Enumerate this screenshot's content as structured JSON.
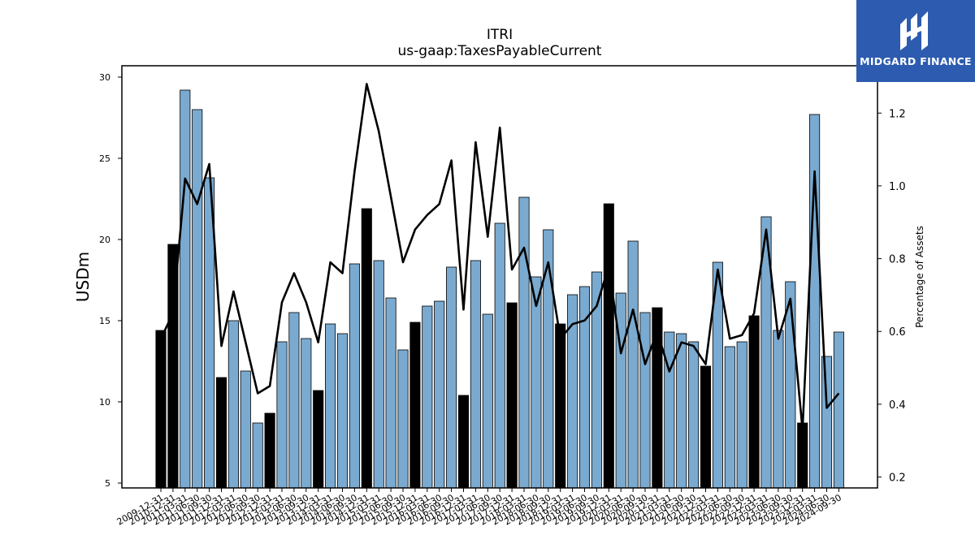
{
  "chart_data": {
    "type": "bar",
    "title": "ITRI",
    "subtitle": "us-gaap:TaxesPayableCurrent",
    "ylabel": "USDm",
    "y2label": "Percentage of Assets",
    "ylim": [
      4.7,
      30.7
    ],
    "y2lim": [
      0.17,
      1.33
    ],
    "yticks": [
      5,
      10,
      15,
      20,
      25,
      30
    ],
    "y2ticks": [
      0.2,
      0.4,
      0.6,
      0.8,
      1.0,
      1.2
    ],
    "y2tick_labels": [
      "0.2",
      "0.4",
      "0.6",
      "0.8",
      "1.0",
      "1.2"
    ],
    "categories": [
      "2009-12-31",
      "2010-12-31",
      "2011-03-31",
      "2011-06-30",
      "2011-09-30",
      "2011-12-31",
      "2012-03-31",
      "2012-06-30",
      "2012-09-30",
      "2012-12-31",
      "2013-03-31",
      "2013-06-30",
      "2013-09-30",
      "2013-12-31",
      "2014-03-31",
      "2014-06-30",
      "2014-09-30",
      "2014-12-31",
      "2015-03-31",
      "2015-06-30",
      "2015-09-30",
      "2015-12-31",
      "2016-03-31",
      "2016-06-30",
      "2016-09-30",
      "2016-12-31",
      "2017-03-31",
      "2017-06-30",
      "2017-09-30",
      "2017-12-31",
      "2018-03-31",
      "2018-06-30",
      "2018-09-30",
      "2018-12-31",
      "2019-03-31",
      "2019-06-30",
      "2019-09-30",
      "2019-12-31",
      "2020-03-31",
      "2020-06-30",
      "2020-09-30",
      "2020-12-31",
      "2021-03-31",
      "2021-06-30",
      "2021-09-30",
      "2021-12-31",
      "2022-03-31",
      "2022-06-30",
      "2022-09-30",
      "2022-12-31",
      "2023-03-31",
      "2023-06-30",
      "2023-09-30",
      "2023-12-31",
      "2024-03-31",
      "2024-06-30",
      "2024-09-30"
    ],
    "series": [
      {
        "type": "bar",
        "values": [
          14.4,
          19.7,
          29.2,
          28.0,
          23.8,
          11.5,
          15.0,
          11.9,
          8.7,
          9.3,
          13.7,
          15.5,
          13.9,
          10.7,
          14.8,
          14.2,
          18.5,
          21.9,
          18.7,
          16.4,
          13.2,
          14.9,
          15.9,
          16.2,
          18.3,
          10.4,
          18.7,
          15.4,
          21.0,
          16.1,
          22.6,
          17.7,
          20.6,
          14.8,
          16.6,
          17.1,
          18.0,
          22.2,
          16.7,
          19.9,
          15.5,
          15.8,
          14.3,
          14.2,
          13.7,
          12.2,
          18.6,
          13.4,
          13.7,
          15.3,
          21.4,
          14.4,
          17.4,
          8.7,
          27.7,
          12.8,
          14.3
        ],
        "year_end": [
          true,
          true,
          false,
          false,
          false,
          true,
          false,
          false,
          false,
          true,
          false,
          false,
          false,
          true,
          false,
          false,
          false,
          true,
          false,
          false,
          false,
          true,
          false,
          false,
          false,
          true,
          false,
          false,
          false,
          true,
          false,
          false,
          false,
          true,
          false,
          false,
          false,
          true,
          false,
          false,
          false,
          true,
          false,
          false,
          false,
          true,
          false,
          false,
          false,
          true,
          false,
          false,
          false,
          true,
          false,
          false,
          false
        ]
      },
      {
        "type": "line",
        "axis": "right",
        "values": [
          0.58,
          0.65,
          1.02,
          0.95,
          1.06,
          0.56,
          0.71,
          0.57,
          0.43,
          0.45,
          0.68,
          0.76,
          0.68,
          0.57,
          0.79,
          0.76,
          1.04,
          1.28,
          1.15,
          0.97,
          0.79,
          0.88,
          0.92,
          0.95,
          1.07,
          0.66,
          1.12,
          0.86,
          1.16,
          0.77,
          0.83,
          0.67,
          0.79,
          0.58,
          0.62,
          0.63,
          0.67,
          0.78,
          0.54,
          0.66,
          0.51,
          0.6,
          0.49,
          0.57,
          0.56,
          0.51,
          0.77,
          0.58,
          0.59,
          0.65,
          0.88,
          0.58,
          0.69,
          0.33,
          1.04,
          0.39,
          0.43
        ]
      }
    ],
    "colors": {
      "bar": "#7aaad0",
      "bar_year_end": "#000000",
      "line": "#000000"
    },
    "grid": false
  },
  "logo": {
    "text": "MIDGARD FINANCE",
    "bg": "#2d5bb0"
  }
}
